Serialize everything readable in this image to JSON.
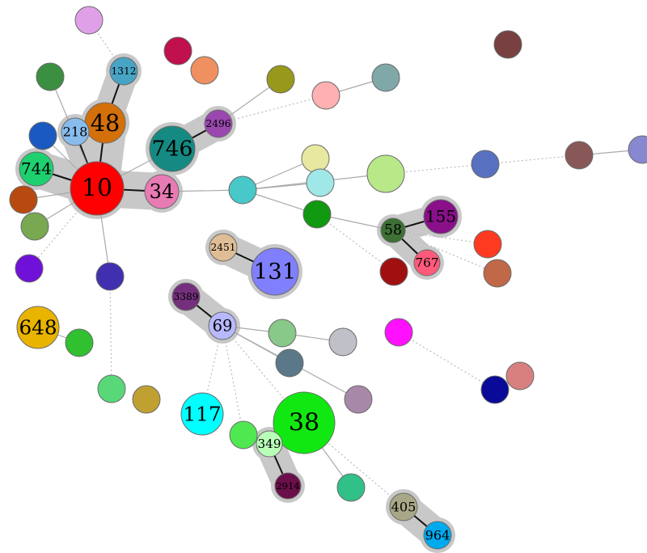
{
  "nodes": [
    {
      "id": "n10",
      "label": "10",
      "color": "#ff0000"
    },
    {
      "id": "n48",
      "label": "48",
      "color": "#d4700a"
    },
    {
      "id": "n1312",
      "label": "1312",
      "color": "#48a4c4"
    },
    {
      "id": "n218",
      "label": "218",
      "color": "#88bcec"
    },
    {
      "id": "n744",
      "label": "744",
      "color": "#1ed070"
    },
    {
      "id": "n34",
      "label": "34",
      "color": "#e87ab4"
    },
    {
      "id": "n746",
      "label": "746",
      "color": "#158a82"
    },
    {
      "id": "n2496",
      "label": "2496",
      "color": "#9a48b0"
    },
    {
      "id": "n2451",
      "label": "2451",
      "color": "#dfbe96"
    },
    {
      "id": "n131",
      "label": "131",
      "color": "#8080ff"
    },
    {
      "id": "n3389",
      "label": "3389",
      "color": "#74307c"
    },
    {
      "id": "n69",
      "label": "69",
      "color": "#b8b8ff"
    },
    {
      "id": "n648",
      "label": "648",
      "color": "#e8b400"
    },
    {
      "id": "n117",
      "label": "117",
      "color": "#00ffff"
    },
    {
      "id": "n38",
      "label": "38",
      "color": "#11e811"
    },
    {
      "id": "n349",
      "label": "349",
      "color": "#b8ffb8"
    },
    {
      "id": "n2914",
      "label": "2914",
      "color": "#6a0f4a"
    },
    {
      "id": "n58",
      "label": "58",
      "color": "#3d7034"
    },
    {
      "id": "n155",
      "label": "155",
      "color": "#8a108a"
    },
    {
      "id": "n767",
      "label": "767",
      "color": "#ff5a7a"
    },
    {
      "id": "n405",
      "label": "405",
      "color": "#a8a888"
    },
    {
      "id": "n964",
      "label": "964",
      "color": "#00aaee"
    },
    {
      "id": "u1",
      "label": "",
      "color": "#e0a0e8"
    },
    {
      "id": "u2",
      "label": "",
      "color": "#c0104e"
    },
    {
      "id": "u3",
      "label": "",
      "color": "#f09060"
    },
    {
      "id": "u4",
      "label": "",
      "color": "#3a9040"
    },
    {
      "id": "u5",
      "label": "",
      "color": "#1a5ac0"
    },
    {
      "id": "u6",
      "label": "",
      "color": "#b84a10"
    },
    {
      "id": "u7",
      "label": "",
      "color": "#78a850"
    },
    {
      "id": "u8",
      "label": "",
      "color": "#7010d8"
    },
    {
      "id": "u9",
      "label": "",
      "color": "#4030b0"
    },
    {
      "id": "u10",
      "label": "",
      "color": "#30c030"
    },
    {
      "id": "u11",
      "label": "",
      "color": "#58d878"
    },
    {
      "id": "u12",
      "label": "",
      "color": "#c0a030"
    },
    {
      "id": "u13",
      "label": "",
      "color": "#98981a"
    },
    {
      "id": "u14",
      "label": "",
      "color": "#ffb0b0"
    },
    {
      "id": "u15",
      "label": "",
      "color": "#80a8a8"
    },
    {
      "id": "u16",
      "label": "",
      "color": "#48c8c8"
    },
    {
      "id": "u17",
      "label": "",
      "color": "#e8e8a0"
    },
    {
      "id": "u18",
      "label": "",
      "color": "#a0e8e8"
    },
    {
      "id": "u19",
      "label": "",
      "color": "#b8e888"
    },
    {
      "id": "u20",
      "label": "",
      "color": "#109810"
    },
    {
      "id": "u21",
      "label": "",
      "color": "#5870c0"
    },
    {
      "id": "u22",
      "label": "",
      "color": "#885858"
    },
    {
      "id": "u23",
      "label": "",
      "color": "#8888d0"
    },
    {
      "id": "u24",
      "label": "",
      "color": "#784040"
    },
    {
      "id": "u25",
      "label": "",
      "color": "#ff3a20"
    },
    {
      "id": "u26",
      "label": "",
      "color": "#c06848"
    },
    {
      "id": "u27",
      "label": "",
      "color": "#a01010"
    },
    {
      "id": "u28",
      "label": "",
      "color": "#ff10ff"
    },
    {
      "id": "u29",
      "label": "",
      "color": "#0a0a98"
    },
    {
      "id": "u30",
      "label": "",
      "color": "#d88080"
    },
    {
      "id": "u31",
      "label": "",
      "color": "#88c888"
    },
    {
      "id": "u32",
      "label": "",
      "color": "#c0c0c8"
    },
    {
      "id": "u33",
      "label": "",
      "color": "#5a7888"
    },
    {
      "id": "u34",
      "label": "",
      "color": "#a888a8"
    },
    {
      "id": "u35",
      "label": "",
      "color": "#50e850"
    },
    {
      "id": "u36",
      "label": "",
      "color": "#30c088"
    }
  ],
  "edges": [
    {
      "source": "n10",
      "target": "n48",
      "style": "strong"
    },
    {
      "source": "n48",
      "target": "n1312",
      "style": "strong"
    },
    {
      "source": "n10",
      "target": "n218",
      "style": "strong"
    },
    {
      "source": "n10",
      "target": "n744",
      "style": "strong"
    },
    {
      "source": "n10",
      "target": "n34",
      "style": "strong"
    },
    {
      "source": "n746",
      "target": "n2496",
      "style": "strong"
    },
    {
      "source": "n2451",
      "target": "n131",
      "style": "strong"
    },
    {
      "source": "n3389",
      "target": "n69",
      "style": "strong"
    },
    {
      "source": "n349",
      "target": "n2914",
      "style": "strong"
    },
    {
      "source": "n58",
      "target": "n155",
      "style": "strong"
    },
    {
      "source": "n58",
      "target": "n767",
      "style": "strong"
    },
    {
      "source": "n405",
      "target": "n964",
      "style": "strong"
    },
    {
      "source": "n10",
      "target": "u4",
      "style": "thin"
    },
    {
      "source": "n10",
      "target": "u5",
      "style": "thin"
    },
    {
      "source": "n10",
      "target": "u6",
      "style": "thin"
    },
    {
      "source": "n10",
      "target": "u7",
      "style": "thin"
    },
    {
      "source": "n10",
      "target": "n746",
      "style": "thin"
    },
    {
      "source": "n10",
      "target": "u9",
      "style": "thin"
    },
    {
      "source": "n10",
      "target": "u8",
      "style": "dotted"
    },
    {
      "source": "u1",
      "target": "n1312",
      "style": "dotted"
    },
    {
      "source": "n34",
      "target": "u16",
      "style": "thin"
    },
    {
      "source": "n2496",
      "target": "u13",
      "style": "thin"
    },
    {
      "source": "n2496",
      "target": "u14",
      "style": "dotted"
    },
    {
      "source": "u14",
      "target": "u15",
      "style": "thin"
    },
    {
      "source": "u16",
      "target": "u17",
      "style": "thin"
    },
    {
      "source": "u16",
      "target": "u18",
      "style": "thin"
    },
    {
      "source": "u16",
      "target": "u19",
      "style": "thin"
    },
    {
      "source": "u16",
      "target": "u20",
      "style": "thin"
    },
    {
      "source": "u20",
      "target": "n58",
      "style": "thin"
    },
    {
      "source": "u20",
      "target": "u27",
      "style": "dotted"
    },
    {
      "source": "u19",
      "target": "u21",
      "style": "dotted"
    },
    {
      "source": "u21",
      "target": "u22",
      "style": "dotted"
    },
    {
      "source": "u22",
      "target": "u23",
      "style": "thin"
    },
    {
      "source": "n58",
      "target": "u25",
      "style": "dotted"
    },
    {
      "source": "n58",
      "target": "u26",
      "style": "dotted"
    },
    {
      "source": "n69",
      "target": "u31",
      "style": "thin"
    },
    {
      "source": "u31",
      "target": "u32",
      "style": "thin"
    },
    {
      "source": "n69",
      "target": "u33",
      "style": "thin"
    },
    {
      "source": "n69",
      "target": "u34",
      "style": "thin"
    },
    {
      "source": "n69",
      "target": "n38",
      "style": "dotted"
    },
    {
      "source": "n69",
      "target": "u35",
      "style": "dotted"
    },
    {
      "source": "n69",
      "target": "n117",
      "style": "dotted"
    },
    {
      "source": "n38",
      "target": "n349",
      "style": "thin"
    },
    {
      "source": "n38",
      "target": "u36",
      "style": "thin"
    },
    {
      "source": "n38",
      "target": "n405",
      "style": "dotted"
    },
    {
      "source": "u9",
      "target": "u11",
      "style": "dotted"
    },
    {
      "source": "u28",
      "target": "u29",
      "style": "dotted"
    },
    {
      "source": "n648",
      "target": "u10",
      "style": "thin"
    }
  ],
  "groups": [
    {
      "id": "g-10-48-1312",
      "members": [
        "n10",
        "n48",
        "n1312",
        "n218",
        "n744",
        "n34"
      ]
    },
    {
      "id": "g-746-2496",
      "members": [
        "n746",
        "n2496"
      ]
    },
    {
      "id": "g-2451-131",
      "members": [
        "n2451",
        "n131"
      ]
    },
    {
      "id": "g-3389-69",
      "members": [
        "n3389",
        "n69"
      ]
    },
    {
      "id": "g-349-2914",
      "members": [
        "n349",
        "n2914"
      ]
    },
    {
      "id": "g-58-155-767",
      "members": [
        "n58",
        "n155",
        "n767"
      ]
    },
    {
      "id": "g-405-964",
      "members": [
        "n405",
        "n964"
      ]
    }
  ]
}
